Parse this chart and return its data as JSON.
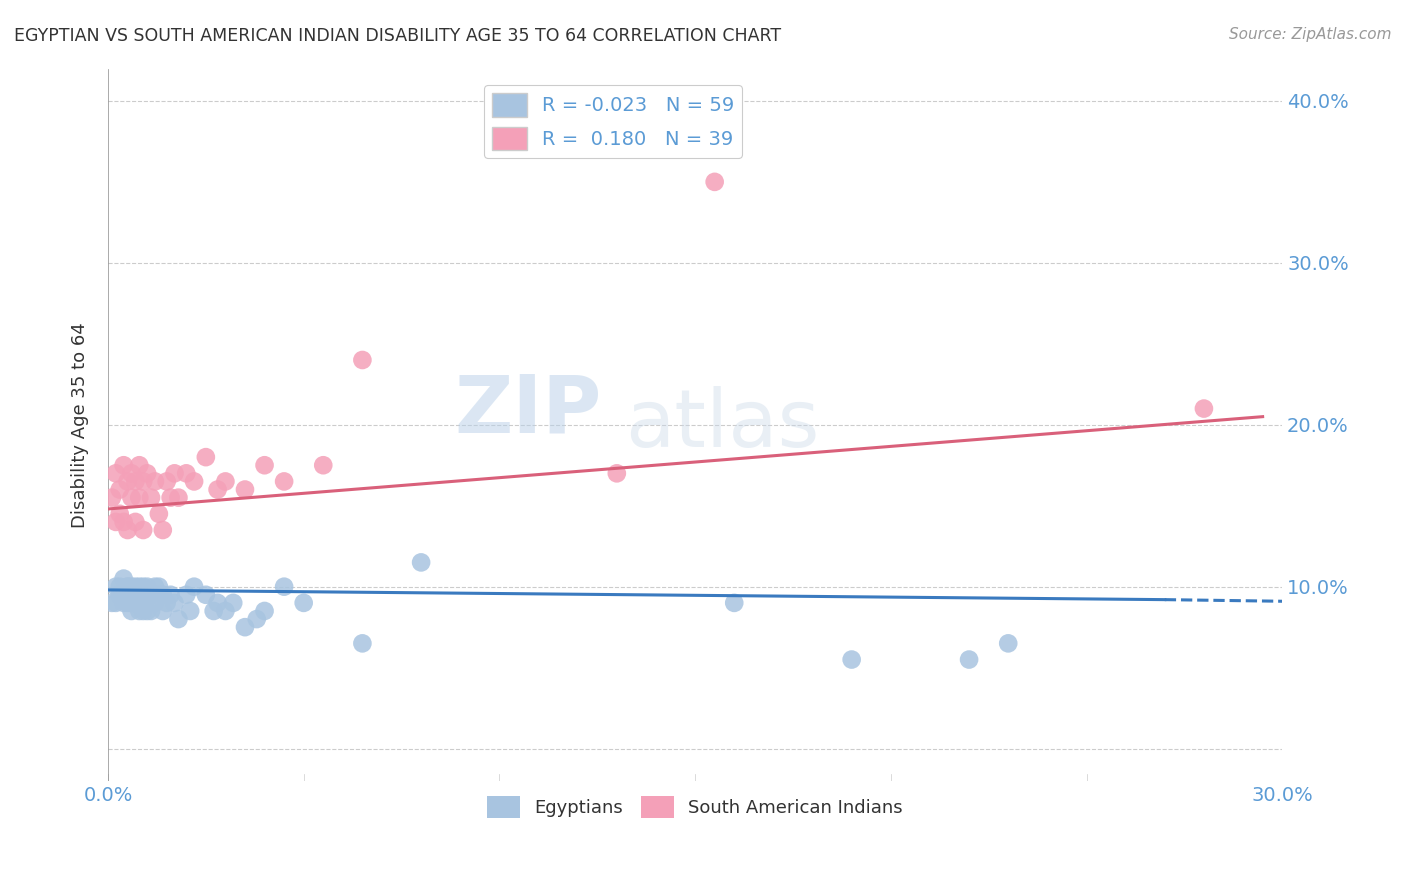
{
  "title": "EGYPTIAN VS SOUTH AMERICAN INDIAN DISABILITY AGE 35 TO 64 CORRELATION CHART",
  "source": "Source: ZipAtlas.com",
  "ylabel": "Disability Age 35 to 64",
  "xlim": [
    0.0,
    0.3
  ],
  "ylim": [
    -0.02,
    0.42
  ],
  "xticks": [
    0.0,
    0.05,
    0.1,
    0.15,
    0.2,
    0.25,
    0.3
  ],
  "yticks": [
    0.0,
    0.1,
    0.2,
    0.3,
    0.4
  ],
  "blue_color": "#a8c4e0",
  "pink_color": "#f4a0b8",
  "blue_line_color": "#3a7abf",
  "pink_line_color": "#d9607a",
  "title_color": "#333333",
  "axis_color": "#5b9bd5",
  "watermark": "ZIPatlas",
  "blue_R": "-0.023",
  "blue_N": "59",
  "pink_R": "0.180",
  "pink_N": "39",
  "legend1": "Egyptians",
  "legend2": "South American Indians",
  "blue_x": [
    0.001,
    0.002,
    0.002,
    0.003,
    0.003,
    0.004,
    0.004,
    0.004,
    0.005,
    0.005,
    0.005,
    0.005,
    0.006,
    0.006,
    0.006,
    0.006,
    0.007,
    0.007,
    0.007,
    0.008,
    0.008,
    0.008,
    0.009,
    0.009,
    0.009,
    0.01,
    0.01,
    0.01,
    0.011,
    0.011,
    0.012,
    0.012,
    0.013,
    0.013,
    0.014,
    0.014,
    0.015,
    0.016,
    0.017,
    0.018,
    0.02,
    0.021,
    0.022,
    0.025,
    0.027,
    0.028,
    0.03,
    0.032,
    0.035,
    0.038,
    0.04,
    0.045,
    0.05,
    0.065,
    0.08,
    0.16,
    0.19,
    0.22,
    0.23
  ],
  "blue_y": [
    0.09,
    0.09,
    0.1,
    0.1,
    0.095,
    0.105,
    0.09,
    0.095,
    0.1,
    0.095,
    0.09,
    0.1,
    0.085,
    0.1,
    0.095,
    0.09,
    0.1,
    0.09,
    0.095,
    0.085,
    0.1,
    0.09,
    0.095,
    0.1,
    0.085,
    0.1,
    0.095,
    0.085,
    0.095,
    0.085,
    0.1,
    0.09,
    0.095,
    0.1,
    0.085,
    0.095,
    0.09,
    0.095,
    0.09,
    0.08,
    0.095,
    0.085,
    0.1,
    0.095,
    0.085,
    0.09,
    0.085,
    0.09,
    0.075,
    0.08,
    0.085,
    0.1,
    0.09,
    0.065,
    0.115,
    0.09,
    0.055,
    0.055,
    0.065
  ],
  "pink_x": [
    0.001,
    0.002,
    0.002,
    0.003,
    0.003,
    0.004,
    0.004,
    0.005,
    0.005,
    0.006,
    0.006,
    0.007,
    0.007,
    0.008,
    0.008,
    0.009,
    0.009,
    0.01,
    0.011,
    0.012,
    0.013,
    0.014,
    0.015,
    0.016,
    0.017,
    0.018,
    0.02,
    0.022,
    0.025,
    0.028,
    0.03,
    0.035,
    0.04,
    0.045,
    0.055,
    0.065,
    0.13,
    0.155,
    0.28
  ],
  "pink_y": [
    0.155,
    0.17,
    0.14,
    0.16,
    0.145,
    0.175,
    0.14,
    0.165,
    0.135,
    0.17,
    0.155,
    0.165,
    0.14,
    0.175,
    0.155,
    0.165,
    0.135,
    0.17,
    0.155,
    0.165,
    0.145,
    0.135,
    0.165,
    0.155,
    0.17,
    0.155,
    0.17,
    0.165,
    0.18,
    0.16,
    0.165,
    0.16,
    0.175,
    0.165,
    0.175,
    0.24,
    0.17,
    0.35,
    0.21
  ],
  "background_color": "#ffffff",
  "grid_color": "#cccccc"
}
